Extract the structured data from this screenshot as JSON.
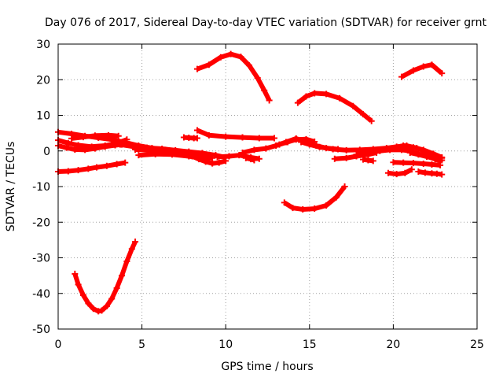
{
  "chart_data": {
    "type": "scatter",
    "title": "Day 076 of 2017, Sidereal Day-to-day VTEC variation (SDTVAR) for receiver grnt",
    "xlabel": "GPS time / hours",
    "ylabel": "SDTVAR / TECUs",
    "xlim": [
      0,
      25
    ],
    "ylim": [
      -50,
      30
    ],
    "xticks": [
      0,
      5,
      10,
      15,
      20,
      25
    ],
    "yticks": [
      30,
      20,
      10,
      0,
      -10,
      -20,
      -30,
      -40,
      -50
    ],
    "grid": true,
    "series_color": "#ff0000",
    "series": [
      {
        "name": "s1",
        "x": [
          0.0,
          0.8,
          1.6,
          2.4,
          3.2,
          4.0,
          4.8,
          5.6,
          6.4,
          7.2,
          8.0,
          8.6,
          9.0
        ],
        "y": [
          5.3,
          4.8,
          4.2,
          3.7,
          3.2,
          2.4,
          1.5,
          0.8,
          0.3,
          -0.3,
          -1.0,
          -1.8,
          -2.4
        ]
      },
      {
        "name": "s2",
        "x": [
          0.0,
          0.6,
          1.2,
          2.0,
          2.8,
          3.5,
          4.1
        ],
        "y": [
          3.0,
          2.2,
          1.6,
          1.2,
          1.5,
          2.2,
          3.2
        ]
      },
      {
        "name": "s3",
        "x": [
          0.0,
          0.5,
          1.0,
          1.6,
          2.2,
          2.8,
          3.4,
          3.8
        ],
        "y": [
          1.5,
          0.9,
          0.4,
          0.3,
          0.7,
          1.2,
          1.6,
          1.8
        ]
      },
      {
        "name": "s4",
        "x": [
          0.8,
          1.5,
          2.2,
          3.0,
          3.6
        ],
        "y": [
          3.5,
          3.9,
          4.3,
          4.4,
          4.2
        ]
      },
      {
        "name": "s5",
        "x": [
          0.0,
          0.6,
          1.2,
          1.8,
          2.3,
          2.9,
          3.5,
          4.0
        ],
        "y": [
          -5.8,
          -5.7,
          -5.4,
          -5.0,
          -4.6,
          -4.2,
          -3.7,
          -3.3
        ]
      },
      {
        "name": "s6",
        "x": [
          1.0,
          1.2,
          1.5,
          1.8,
          2.1,
          2.4,
          2.6,
          2.9,
          3.2,
          3.5,
          3.8,
          4.1,
          4.4,
          4.6
        ],
        "y": [
          -34.5,
          -37.5,
          -40.5,
          -42.8,
          -44.3,
          -45.0,
          -44.8,
          -43.6,
          -41.5,
          -38.5,
          -35.0,
          -31.0,
          -27.5,
          -25.5
        ]
      },
      {
        "name": "s7",
        "x": [
          3.7,
          4.5,
          5.3,
          6.2,
          7.0,
          7.8,
          8.6,
          9.4,
          10.0
        ],
        "y": [
          1.8,
          1.2,
          0.9,
          0.6,
          0.2,
          -0.2,
          -0.6,
          -1.2,
          -1.8
        ]
      },
      {
        "name": "s8",
        "x": [
          4.8,
          5.8,
          6.8,
          7.8,
          8.5,
          9.2
        ],
        "y": [
          -1.2,
          -0.9,
          -1.0,
          -1.5,
          -2.0,
          -2.0
        ]
      },
      {
        "name": "s9",
        "x": [
          4.6,
          5.4,
          6.2,
          7.0
        ],
        "y": [
          0.4,
          0.2,
          -0.1,
          -0.4
        ]
      },
      {
        "name": "s10",
        "x": [
          7.5,
          7.8,
          8.1,
          8.3
        ],
        "y": [
          3.8,
          3.7,
          3.6,
          3.6
        ]
      },
      {
        "name": "s11",
        "x": [
          8.0,
          8.4,
          8.8,
          9.2,
          9.6,
          10.0
        ],
        "y": [
          -1.5,
          -2.3,
          -3.0,
          -3.5,
          -3.3,
          -2.8
        ]
      },
      {
        "name": "s12",
        "x": [
          8.3,
          9.0,
          10.0,
          11.0,
          12.0,
          12.9
        ],
        "y": [
          5.8,
          4.4,
          4.0,
          3.8,
          3.6,
          3.6
        ]
      },
      {
        "name": "s13",
        "x": [
          8.3,
          9.0,
          9.7,
          10.3,
          10.9,
          11.4,
          11.9,
          12.3,
          12.6
        ],
        "y": [
          23.0,
          24.2,
          26.3,
          27.2,
          26.4,
          24.0,
          20.5,
          17.0,
          14.2
        ]
      },
      {
        "name": "s14",
        "x": [
          9.5,
          10.2,
          10.8,
          11.5,
          12.0
        ],
        "y": [
          -1.7,
          -1.5,
          -1.2,
          -1.8,
          -2.2
        ]
      },
      {
        "name": "s15",
        "x": [
          11.2,
          11.5,
          11.7
        ],
        "y": [
          -2.0,
          -2.3,
          -2.6
        ]
      },
      {
        "name": "s16",
        "x": [
          11.0,
          11.7,
          12.4,
          13.0,
          13.6,
          14.2,
          14.8,
          15.4,
          16.0,
          16.7
        ],
        "y": [
          -0.5,
          0.3,
          0.7,
          1.5,
          2.5,
          3.5,
          2.5,
          1.5,
          0.8,
          0.5
        ]
      },
      {
        "name": "s17",
        "x": [
          13.2,
          13.7,
          14.2,
          14.8,
          15.3
        ],
        "y": [
          1.8,
          2.5,
          3.2,
          3.3,
          2.6
        ]
      },
      {
        "name": "s18",
        "x": [
          13.5,
          14.0,
          14.6,
          15.3,
          16.0,
          16.6,
          17.1
        ],
        "y": [
          -14.5,
          -16.0,
          -16.4,
          -16.2,
          -15.3,
          -13.0,
          -10.0
        ]
      },
      {
        "name": "s19",
        "x": [
          14.3,
          14.8,
          15.3,
          16.0,
          16.8,
          17.6,
          18.2,
          18.7
        ],
        "y": [
          13.5,
          15.3,
          16.2,
          16.0,
          14.8,
          12.6,
          10.3,
          8.4
        ]
      },
      {
        "name": "s20",
        "x": [
          14.5,
          15.0,
          15.6,
          16.4,
          17.2,
          18.0,
          18.8,
          19.6,
          20.2,
          20.8,
          21.4,
          22.0,
          22.6,
          22.9
        ],
        "y": [
          2.5,
          1.8,
          1.1,
          0.5,
          0.2,
          0.3,
          0.5,
          0.8,
          1.2,
          1.5,
          0.8,
          -0.3,
          -1.5,
          -2.0
        ]
      },
      {
        "name": "s21",
        "x": [
          16.5,
          17.2,
          17.8,
          18.5,
          19.0
        ],
        "y": [
          -2.2,
          -2.0,
          -1.5,
          -1.0,
          -0.5
        ]
      },
      {
        "name": "s22",
        "x": [
          17.8,
          18.5,
          19.2,
          19.8,
          20.5,
          21.0,
          21.5,
          22.0,
          22.5,
          22.8
        ],
        "y": [
          -1.0,
          -0.6,
          0.0,
          0.3,
          0.3,
          0.0,
          -0.8,
          -1.5,
          -2.3,
          -2.8
        ]
      },
      {
        "name": "s23",
        "x": [
          18.2,
          18.5,
          18.8
        ],
        "y": [
          -2.4,
          -2.6,
          -2.8
        ]
      },
      {
        "name": "s24",
        "x": [
          19.7,
          20.2,
          20.7,
          21.1
        ],
        "y": [
          -6.2,
          -6.5,
          -6.2,
          -5.2
        ]
      },
      {
        "name": "s25",
        "x": [
          20.0,
          20.6,
          21.2,
          21.8,
          22.3,
          22.8
        ],
        "y": [
          -3.2,
          -3.3,
          -3.4,
          -3.6,
          -3.8,
          -4.0
        ]
      },
      {
        "name": "s26",
        "x": [
          20.0,
          20.6,
          21.2,
          21.8,
          22.4,
          22.9
        ],
        "y": [
          0.8,
          1.5,
          1.0,
          0.3,
          -0.8,
          -1.8
        ]
      },
      {
        "name": "s27",
        "x": [
          20.5,
          21.2,
          21.8,
          22.3,
          22.9
        ],
        "y": [
          20.8,
          22.6,
          23.7,
          24.2,
          21.8
        ]
      },
      {
        "name": "s28",
        "x": [
          21.5,
          21.9,
          22.3,
          22.6,
          22.9
        ],
        "y": [
          -5.8,
          -6.1,
          -6.3,
          -6.4,
          -6.6
        ]
      },
      {
        "name": "s29",
        "x": [
          21.0,
          21.5,
          22.0,
          22.5,
          22.9
        ],
        "y": [
          -0.5,
          -1.0,
          -1.6,
          -2.2,
          -2.6
        ]
      }
    ]
  }
}
